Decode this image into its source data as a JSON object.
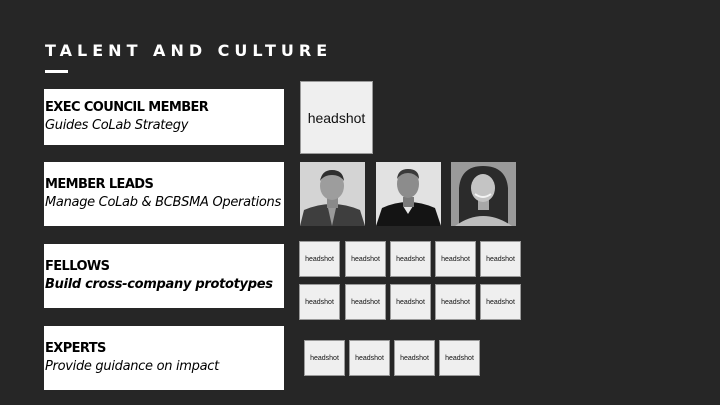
{
  "slide": {
    "title": "TALENT AND CULTURE"
  },
  "rows": {
    "exec": {
      "title": "EXEC COUNCIL MEMBER",
      "description": "Guides CoLab Strategy",
      "placeholder": "headshot"
    },
    "leads": {
      "title": "MEMBER LEADS",
      "description": "Manage CoLab & BCBSMA Operations",
      "photos": [
        "person-photo",
        "person-photo",
        "person-photo"
      ]
    },
    "fellows": {
      "title": "FELLOWS",
      "description": "Build cross-company prototypes",
      "placeholders": [
        "headshot",
        "headshot",
        "headshot",
        "headshot",
        "headshot",
        "headshot",
        "headshot",
        "headshot",
        "headshot",
        "headshot"
      ]
    },
    "experts": {
      "title": "EXPERTS",
      "description": "Provide guidance on impact",
      "placeholders": [
        "headshot",
        "headshot",
        "headshot",
        "headshot"
      ]
    }
  },
  "colors": {
    "background": "#262626",
    "box": "#ffffff",
    "placeholder": "#efefef"
  }
}
